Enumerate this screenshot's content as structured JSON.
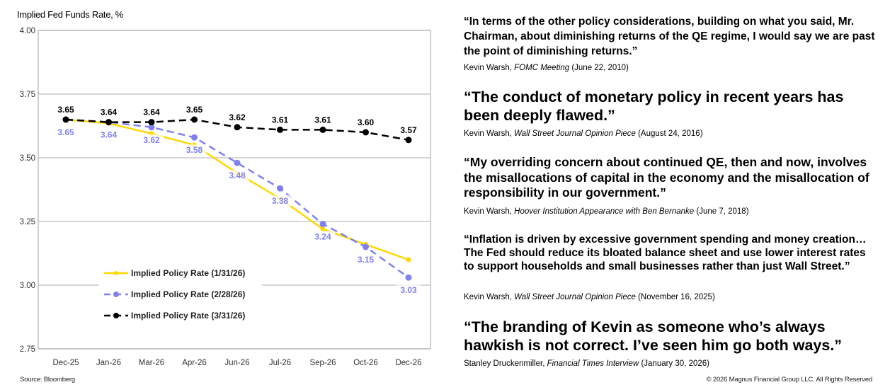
{
  "chart_data": {
    "type": "line",
    "title": "Implied Fed Funds Rate, %",
    "xlabel": "",
    "ylabel": "",
    "categories": [
      "Dec-25",
      "Jan-26",
      "Mar-26",
      "Apr-26",
      "Jun-26",
      "Jul-26",
      "Sep-26",
      "Oct-26",
      "Dec-26"
    ],
    "ylim": [
      2.75,
      4.0
    ],
    "yticks": [
      "4.00",
      "3.75",
      "3.50",
      "3.25",
      "3.00",
      "2.75"
    ],
    "grid": true,
    "legend_placement": "bottom-left",
    "series": [
      {
        "name": "Implied Policy Rate (1/31/26)",
        "color": "#FFD700",
        "dashed": false,
        "labeled": false,
        "values": [
          3.65,
          3.635,
          3.595,
          3.55,
          3.44,
          3.34,
          3.22,
          3.16,
          3.1
        ]
      },
      {
        "name": "Implied Policy Rate (2/28/26)",
        "color": "#8080F0",
        "dashed": true,
        "labeled": true,
        "label_pos": "below",
        "values": [
          3.65,
          3.64,
          3.62,
          3.58,
          3.48,
          3.38,
          3.24,
          3.15,
          3.03
        ]
      },
      {
        "name": "Implied Policy Rate (3/31/26)",
        "color": "#000000",
        "dashed": true,
        "labeled": true,
        "label_pos": "above",
        "values": [
          3.65,
          3.64,
          3.64,
          3.65,
          3.62,
          3.61,
          3.61,
          3.6,
          3.57
        ]
      }
    ]
  },
  "source": "Source: Bloomberg",
  "copyright": "© 2026 Magnus Financial Group LLC. All Rights Reserved",
  "quotes": [
    {
      "text": "“In terms of the other policy considerations, building on what you said, Mr. Chairman, about diminishing returns of the QE regime, I would say we are past the point of diminishing returns.”",
      "speaker": "Kevin Warsh, ",
      "venue": "FOMC Meeting",
      "date": " (June 22, 2010)"
    },
    {
      "text": "“The conduct of monetary policy in recent years has been deeply flawed.”",
      "speaker": "Kevin Warsh, ",
      "venue": "Wall Street Journal Opinion Piece",
      "date": " (August 24, 2016)"
    },
    {
      "text": "“My overriding concern about continued QE, then and now, involves the misallocations of capital in the economy and the misallocation of responsibility in our government.”",
      "speaker": "Kevin Warsh, ",
      "venue": "Hoover Institution Appearance with Ben Bernanke",
      "date": " (June 7, 2018)"
    },
    {
      "text": "“Inflation is driven by excessive government spending and money creation… The Fed should reduce its bloated balance sheet and use lower interest rates to support households and small businesses rather than just Wall Street.”",
      "speaker": "Kevin Warsh, ",
      "venue": "Wall Street Journal Opinion Piece",
      "date": " (November 16, 2025)"
    },
    {
      "text": "“The branding of Kevin as someone who’s always hawkish is not correct. I’ve seen him go both ways.”",
      "speaker": "Stanley Druckenmiller, ",
      "venue": "Financial Times Interview",
      "date": " (January 30, 2026)"
    }
  ]
}
